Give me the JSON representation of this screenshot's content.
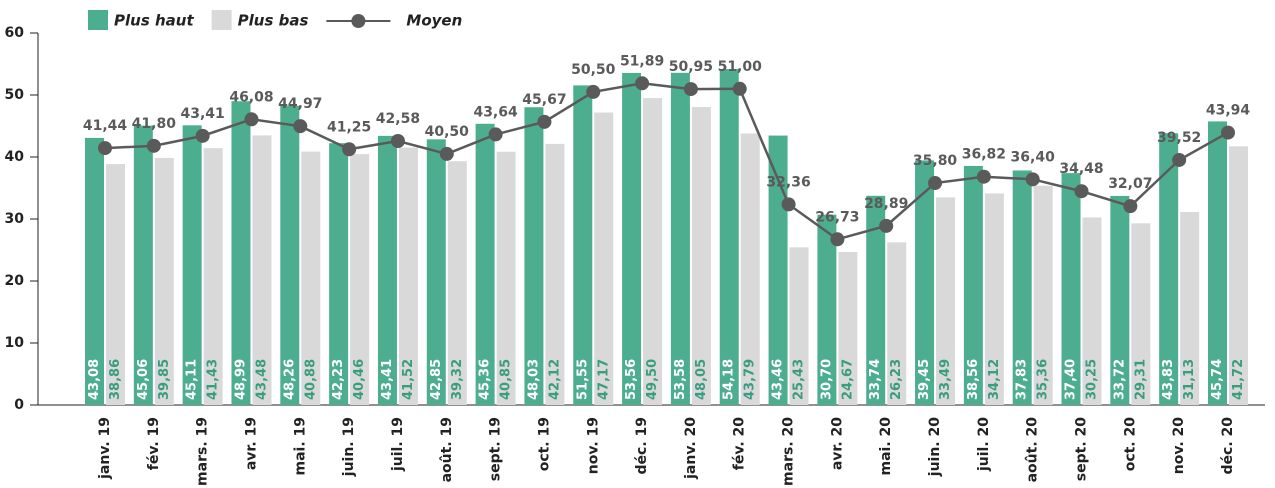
{
  "chart_data": {
    "type": "bar-line",
    "categories": [
      "janv. 19",
      "fév. 19",
      "mars. 19",
      "avr. 19",
      "mai. 19",
      "juin. 19",
      "juil. 19",
      "août. 19",
      "sept. 19",
      "oct. 19",
      "nov. 19",
      "déc. 19",
      "janv. 20",
      "fév. 20",
      "mars. 20",
      "avr. 20",
      "mai. 20",
      "juin. 20",
      "juil. 20",
      "août. 20",
      "sept. 20",
      "oct. 20",
      "nov. 20",
      "déc. 20"
    ],
    "series": [
      {
        "name": "Plus haut",
        "type": "bar",
        "color": "#4dae8f",
        "values": [
          43.08,
          45.06,
          45.11,
          48.99,
          48.26,
          42.23,
          43.41,
          42.85,
          45.36,
          48.03,
          51.55,
          53.56,
          53.58,
          54.18,
          43.46,
          30.7,
          33.74,
          39.45,
          38.56,
          37.83,
          37.4,
          33.72,
          43.83,
          45.74
        ],
        "value_labels": [
          "43,08",
          "45,06",
          "45,11",
          "48,99",
          "48,26",
          "42,23",
          "43,41",
          "42,85",
          "45,36",
          "48,03",
          "51,55",
          "53,56",
          "53,58",
          "54,18",
          "43,46",
          "30,70",
          "33,74",
          "39,45",
          "38,56",
          "37,83",
          "37,40",
          "33,72",
          "43,83",
          "45,74"
        ]
      },
      {
        "name": "Plus bas",
        "type": "bar",
        "color": "#d9d9d9",
        "values": [
          38.86,
          39.85,
          41.43,
          43.48,
          40.88,
          40.46,
          41.52,
          39.32,
          40.85,
          42.12,
          47.17,
          49.5,
          48.05,
          43.79,
          25.43,
          24.67,
          26.23,
          33.49,
          34.12,
          35.36,
          30.25,
          29.31,
          31.13,
          41.72
        ],
        "value_labels": [
          "38,86",
          "39,85",
          "41,43",
          "43,48",
          "40,88",
          "40,46",
          "41,52",
          "39,32",
          "40,85",
          "42,12",
          "47,17",
          "49,50",
          "48,05",
          "43,79",
          "25,43",
          "24,67",
          "26,23",
          "33,49",
          "34,12",
          "35,36",
          "30,25",
          "29,31",
          "31,13",
          "41,72"
        ]
      },
      {
        "name": "Moyen",
        "type": "line",
        "color": "#5a5a5a",
        "values": [
          41.44,
          41.8,
          43.41,
          46.08,
          44.97,
          41.25,
          42.58,
          40.5,
          43.64,
          45.67,
          50.5,
          51.89,
          50.95,
          51.0,
          32.36,
          26.73,
          28.89,
          35.8,
          36.82,
          36.4,
          34.48,
          32.07,
          39.52,
          43.94
        ],
        "value_labels": [
          "41,44",
          "41,80",
          "43,41",
          "46,08",
          "44,97",
          "41,25",
          "42,58",
          "40,50",
          "43,64",
          "45,67",
          "50,50",
          "51,89",
          "50,95",
          "51,00",
          "32,36",
          "26,73",
          "28,89",
          "35,80",
          "36,82",
          "36,40",
          "34,48",
          "32,07",
          "39,52",
          "43,94"
        ]
      }
    ],
    "ylim": [
      0,
      60
    ],
    "yticks": [
      0,
      10,
      20,
      30,
      40,
      50,
      60
    ],
    "grid": false
  }
}
